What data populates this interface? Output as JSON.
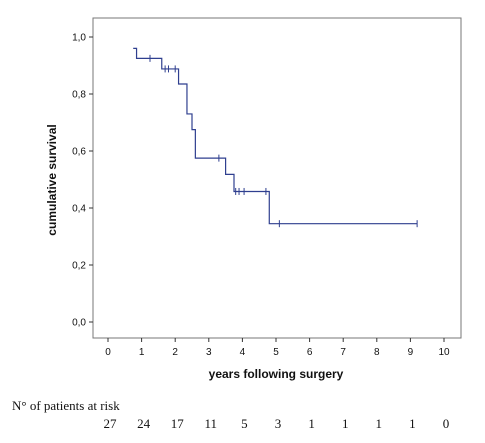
{
  "chart_data": {
    "type": "line",
    "subtype": "kaplan-meier-step",
    "xlabel": "years following surgery",
    "ylabel": "cumulative survival",
    "xlim": [
      0,
      10
    ],
    "ylim": [
      0,
      1
    ],
    "x_ticks": [
      "0",
      "1",
      "2",
      "3",
      "4",
      "5",
      "6",
      "7",
      "8",
      "9",
      "10"
    ],
    "y_ticks": [
      "0,0",
      "0,2",
      "0,4",
      "0,6",
      "0,8",
      "1,0"
    ],
    "grid": false,
    "line_color": "#2f3f8f",
    "step_points": [
      {
        "x": 0.75,
        "y": 0.96
      },
      {
        "x": 0.85,
        "y": 0.925
      },
      {
        "x": 1.6,
        "y": 0.888
      },
      {
        "x": 2.1,
        "y": 0.835
      },
      {
        "x": 2.35,
        "y": 0.73
      },
      {
        "x": 2.5,
        "y": 0.675
      },
      {
        "x": 2.6,
        "y": 0.575
      },
      {
        "x": 3.5,
        "y": 0.518
      },
      {
        "x": 3.75,
        "y": 0.458
      },
      {
        "x": 4.8,
        "y": 0.345
      }
    ],
    "end_x": 9.2,
    "censored": [
      {
        "x": 1.25,
        "y": 0.925
      },
      {
        "x": 1.7,
        "y": 0.888
      },
      {
        "x": 1.8,
        "y": 0.888
      },
      {
        "x": 2.0,
        "y": 0.888
      },
      {
        "x": 3.3,
        "y": 0.575
      },
      {
        "x": 3.8,
        "y": 0.458
      },
      {
        "x": 3.9,
        "y": 0.458
      },
      {
        "x": 4.05,
        "y": 0.458
      },
      {
        "x": 4.7,
        "y": 0.458
      },
      {
        "x": 5.1,
        "y": 0.345
      },
      {
        "x": 9.2,
        "y": 0.345
      }
    ],
    "risk_table": {
      "title": "N° of patients at risk",
      "values": [
        "27",
        "24",
        "17",
        "11",
        "5",
        "3",
        "1",
        "1",
        "1",
        "1",
        "0"
      ]
    }
  }
}
